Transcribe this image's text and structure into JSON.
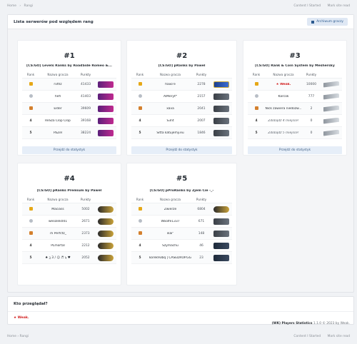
{
  "topbar": {
    "home": "Home",
    "sep": "›",
    "crumb": "Rangi",
    "content_started": "Content I Started",
    "mark_read": "Mark site read"
  },
  "main": {
    "title": "Lista serwerów pod względem rang",
    "archive_label": "Archiwum graczy"
  },
  "headers": {
    "rank": "Rank",
    "name": "Nazwa gracza",
    "points": "Punkty"
  },
  "stats_button": "Przejdź do statystyk",
  "servers": [
    {
      "num": "#1",
      "name": "[CS:GO] Levels Ranks by RoadSide Romeo &...",
      "rows": [
        {
          "rank": "",
          "name": "rvthz",
          "points": "41433"
        },
        {
          "rank": "",
          "name": "hefi",
          "points": "41403"
        },
        {
          "rank": "",
          "name": "Elder",
          "points": "39609"
        },
        {
          "rank": "4",
          "name": "ReSza Clop Clop",
          "points": "39168"
        },
        {
          "rank": "5",
          "name": "PaZel",
          "points": "38224"
        }
      ]
    },
    {
      "num": "#2",
      "name": "[CS:GO] pRanks by Pawel",
      "rows": [
        {
          "rank": "",
          "name": "haxo'e",
          "points": "2278"
        },
        {
          "rank": "",
          "name": "AlMeryt*",
          "points": "2157"
        },
        {
          "rank": "",
          "name": "xava",
          "points": "2041"
        },
        {
          "rank": "4",
          "name": "S3nt",
          "points": "2007"
        },
        {
          "rank": "5",
          "name": "Sitta katujemy.eu",
          "points": "1846"
        }
      ]
    },
    {
      "num": "#3",
      "name": "[CS:GO] Rank & Coin System by Meshersky",
      "rows": [
        {
          "rank": "",
          "name": "Weak.",
          "points": "10000"
        },
        {
          "rank": "",
          "name": "Karcok",
          "points": "777"
        },
        {
          "rank": "",
          "name": "Nick zawiera niedozw...",
          "points": "2"
        },
        {
          "rank": "4",
          "name": "Zdobądź 4 miejsce!",
          "points": "0"
        },
        {
          "rank": "5",
          "name": "Zdobądź 5 miejsce!",
          "points": "0"
        }
      ]
    },
    {
      "num": "#4",
      "name": "[CS:GO] pRanks Premium by Pawel",
      "rows": [
        {
          "rank": "",
          "name": "Maciass",
          "points": "5002"
        },
        {
          "rank": "",
          "name": "wesolek001",
          "points": "2671"
        },
        {
          "rank": "",
          "name": "7li Perfctz_",
          "points": "2373"
        },
        {
          "rank": "4",
          "name": "PLmortal",
          "points": "2212"
        },
        {
          "rank": "5",
          "name": "♠ ꝫ 3 / ☺ ♬ ϡ ♥",
          "points": "2052"
        }
      ]
    },
    {
      "num": "#5",
      "name": "[CS:GO] pProRanks by Zjem Cie -_-",
      "rows": [
        {
          "rank": "",
          "name": "Zwierze",
          "points": "6804"
        },
        {
          "rank": "",
          "name": "Woolfe1337",
          "points": "671"
        },
        {
          "rank": "",
          "name": "ikar'",
          "points": "148"
        },
        {
          "rank": "4",
          "name": "Szymachu",
          "points": "46"
        },
        {
          "rank": "5",
          "name": "korek93bq | CASEDROP.GG",
          "points": "23"
        }
      ]
    }
  ],
  "who": {
    "title": "Kto przeglądał?",
    "user": "Weak."
  },
  "copyright": {
    "app": "(WK) Players Statistics",
    "rest": "1.1.0 © 2023 by Weak."
  },
  "colors": {
    "accent": "#2b5a8f",
    "star": "#d11a1a",
    "gold": "#e6a817"
  }
}
